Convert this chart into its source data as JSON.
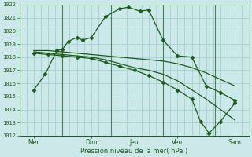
{
  "xlabel": "Pression niveau de la mer( hPa )",
  "ylim": [
    1012,
    1022
  ],
  "xlim": [
    0,
    8
  ],
  "bg_color": "#cce8e8",
  "grid_color": "#99cccc",
  "line_color": "#1a5c1a",
  "xtick_labels": [
    "Mer",
    "Dim",
    "Jeu",
    "Ven",
    "Sam"
  ],
  "xtick_positions": [
    0.5,
    2.5,
    4.0,
    5.5,
    7.5
  ],
  "vline_positions": [
    0.0,
    1.5,
    3.2,
    5.0,
    6.8,
    8.0
  ],
  "series1_main": {
    "x": [
      0.5,
      0.9,
      1.3,
      1.5,
      1.7,
      2.0,
      2.2,
      2.5,
      3.0,
      3.5,
      3.8,
      4.2,
      4.5,
      5.0,
      5.5,
      6.0,
      6.5,
      7.0,
      7.5
    ],
    "y": [
      1015.5,
      1016.7,
      1018.5,
      1018.6,
      1019.2,
      1019.5,
      1019.3,
      1019.5,
      1021.1,
      1021.7,
      1021.8,
      1021.5,
      1021.6,
      1019.3,
      1018.1,
      1018.0,
      1015.8,
      1015.3,
      1014.7
    ]
  },
  "series2_flat": {
    "x": [
      0.5,
      1.0,
      1.5,
      2.0,
      2.5,
      3.0,
      3.5,
      4.0,
      4.5,
      5.0,
      5.5,
      6.0,
      6.5,
      7.0,
      7.5
    ],
    "y": [
      1018.5,
      1018.5,
      1018.4,
      1018.3,
      1018.2,
      1018.1,
      1018.0,
      1017.9,
      1017.8,
      1017.7,
      1017.5,
      1017.2,
      1016.8,
      1016.3,
      1015.8
    ]
  },
  "series3_decline": {
    "x": [
      0.5,
      1.0,
      1.5,
      2.0,
      2.5,
      3.0,
      3.5,
      4.0,
      4.5,
      5.0,
      5.5,
      6.0,
      6.5,
      7.0,
      7.5
    ],
    "y": [
      1018.4,
      1018.3,
      1018.2,
      1018.1,
      1018.0,
      1017.8,
      1017.5,
      1017.2,
      1017.0,
      1016.7,
      1016.2,
      1015.5,
      1014.8,
      1014.0,
      1013.2
    ]
  },
  "series4_steep": {
    "x": [
      0.5,
      1.0,
      1.5,
      2.0,
      2.5,
      3.0,
      3.5,
      4.0,
      4.5,
      5.0,
      5.5,
      6.0,
      6.3,
      6.6,
      7.0,
      7.5
    ],
    "y": [
      1018.3,
      1018.2,
      1018.1,
      1018.0,
      1017.9,
      1017.6,
      1017.3,
      1017.0,
      1016.6,
      1016.1,
      1015.5,
      1014.8,
      1013.1,
      1012.2,
      1013.1,
      1014.5
    ]
  }
}
